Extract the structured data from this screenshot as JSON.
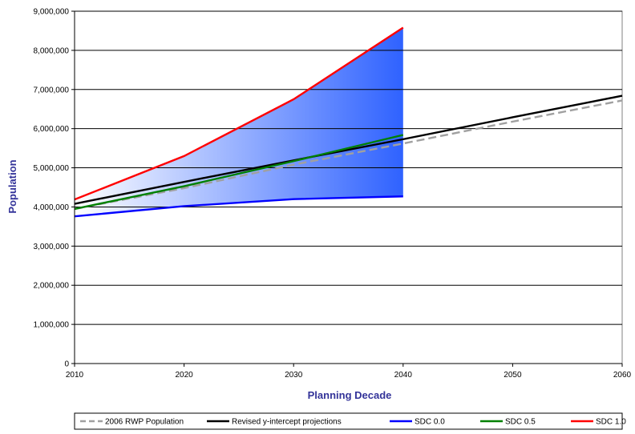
{
  "chart_data": {
    "type": "line",
    "title": "",
    "xlabel": "Planning Decade",
    "ylabel": "Population",
    "xlim": [
      2010,
      2060
    ],
    "ylim": [
      0,
      9000000
    ],
    "x_ticks": [
      "2010",
      "2020",
      "2030",
      "2040",
      "2050",
      "2060"
    ],
    "y_ticks": [
      "0",
      "1,000,000",
      "2,000,000",
      "3,000,000",
      "4,000,000",
      "5,000,000",
      "6,000,000",
      "7,000,000",
      "8,000,000",
      "9,000,000"
    ],
    "grid": "horizontal",
    "legend_position": "bottom",
    "shaded_range": {
      "between": [
        "SDC 0.0",
        "SDC 1.0"
      ],
      "x_range": [
        2010,
        2040
      ],
      "gradient": [
        "#ffffff",
        "#2f62ff"
      ]
    },
    "series": [
      {
        "name": "2006 RWP Population",
        "color": "#a0a0a0",
        "dash": true,
        "x": [
          2010,
          2020,
          2030,
          2040,
          2050,
          2060
        ],
        "y": [
          3950000,
          4480000,
          5080000,
          5620000,
          6180000,
          6720000
        ]
      },
      {
        "name": "Revised y-intercept projections",
        "color": "#000000",
        "dash": false,
        "x": [
          2010,
          2020,
          2030,
          2040,
          2050,
          2060
        ],
        "y": [
          4080000,
          4640000,
          5190000,
          5730000,
          6290000,
          6840000
        ]
      },
      {
        "name": "SDC 0.0",
        "color": "#0000ff",
        "dash": false,
        "x": [
          2010,
          2020,
          2030,
          2040
        ],
        "y": [
          3760000,
          4020000,
          4200000,
          4270000
        ]
      },
      {
        "name": "SDC 0.5",
        "color": "#008000",
        "dash": false,
        "x": [
          2010,
          2020,
          2030,
          2040
        ],
        "y": [
          3950000,
          4530000,
          5170000,
          5840000
        ]
      },
      {
        "name": "SDC 1.0",
        "color": "#ff0000",
        "dash": false,
        "x": [
          2010,
          2020,
          2030,
          2040
        ],
        "y": [
          4190000,
          5300000,
          6750000,
          8580000
        ]
      }
    ]
  }
}
